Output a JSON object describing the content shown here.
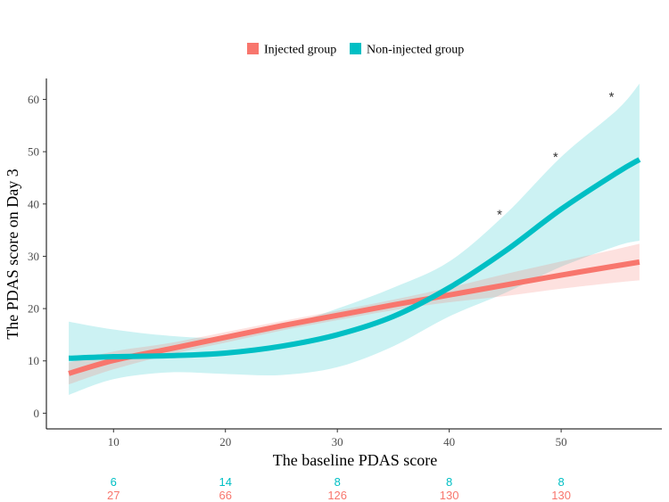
{
  "chart_data": {
    "type": "line",
    "title": "",
    "xlabel": "The baseline PDAS score",
    "ylabel": "The PDAS score on Day 3",
    "xlim": [
      4,
      59
    ],
    "ylim": [
      -3,
      64
    ],
    "x_ticks": [
      10,
      20,
      30,
      40,
      50
    ],
    "y_ticks": [
      0,
      10,
      20,
      30,
      40,
      50,
      60
    ],
    "legend_position": "top",
    "series": [
      {
        "name": "Injected group",
        "color": "#F8766D",
        "band_color": "#F8766D",
        "x": [
          6,
          10,
          15,
          20,
          25,
          30,
          35,
          40,
          45,
          50,
          55,
          57
        ],
        "y": [
          7.6,
          10.1,
          12.3,
          14.5,
          16.7,
          18.7,
          20.7,
          22.6,
          24.5,
          26.4,
          28.2,
          28.9
        ],
        "lower": [
          5.5,
          8.4,
          11.2,
          13.5,
          15.8,
          17.8,
          19.7,
          21.2,
          22.4,
          23.8,
          25.0,
          25.4
        ],
        "upper": [
          9.7,
          11.8,
          13.4,
          15.5,
          17.6,
          19.6,
          21.7,
          24.0,
          26.6,
          29.0,
          31.4,
          32.4
        ]
      },
      {
        "name": "Non-injected group",
        "color": "#00BFC4",
        "band_color": "#00BFC4",
        "x": [
          6,
          10,
          15,
          20,
          25,
          30,
          35,
          40,
          45,
          50,
          55,
          57
        ],
        "y": [
          10.5,
          10.8,
          11.0,
          11.5,
          12.8,
          15.0,
          18.5,
          24.0,
          31.0,
          39.0,
          46.0,
          48.5
        ],
        "lower": [
          3.5,
          6.5,
          7.8,
          7.5,
          7.3,
          8.8,
          12.8,
          18.5,
          23.0,
          28.0,
          32.0,
          33.0
        ],
        "upper": [
          17.5,
          16.0,
          14.8,
          14.5,
          16.5,
          20.0,
          24.0,
          29.0,
          38.0,
          49.0,
          58.0,
          63.0
        ]
      }
    ],
    "annotations": [
      {
        "text": "*",
        "x": 44.5,
        "y": 38.0
      },
      {
        "text": "*",
        "x": 49.5,
        "y": 49.0
      },
      {
        "text": "*",
        "x": 54.5,
        "y": 60.5
      }
    ],
    "counts": {
      "x": [
        10,
        20,
        30,
        40,
        50
      ],
      "rows": [
        {
          "group": "Non-injected group",
          "color": "#00BFC4",
          "values": [
            "6",
            "14",
            "8",
            "8",
            "8"
          ]
        },
        {
          "group": "Injected group",
          "color": "#F8766D",
          "values": [
            "27",
            "66",
            "126",
            "130",
            "130"
          ]
        }
      ]
    }
  }
}
